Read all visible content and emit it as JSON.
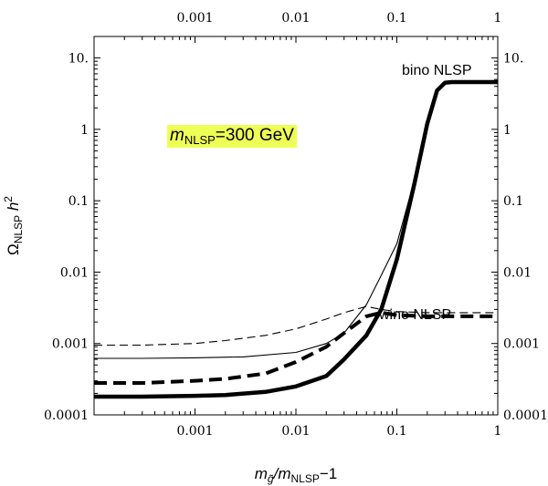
{
  "chart_data": {
    "type": "line",
    "xscale": "log",
    "yscale": "log",
    "xlim": [
      0.0001,
      1
    ],
    "ylim": [
      0.0001,
      20
    ],
    "grid": false,
    "xticks": [
      {
        "value": 0.001,
        "label": "0.001"
      },
      {
        "value": 0.01,
        "label": "0.01"
      },
      {
        "value": 0.1,
        "label": "0.1"
      },
      {
        "value": 1,
        "label": "1"
      }
    ],
    "yticks": [
      {
        "value": 0.0001,
        "label": "0.0001"
      },
      {
        "value": 0.001,
        "label": "0.001"
      },
      {
        "value": 0.01,
        "label": "0.01"
      },
      {
        "value": 0.1,
        "label": "0.1"
      },
      {
        "value": 1,
        "label": "1"
      },
      {
        "value": 10,
        "label": "10."
      }
    ],
    "xlabel": {
      "main": "m",
      "sub": "g̃",
      "rest": "/m",
      "sub2": "NLSP",
      "tail": "−1"
    },
    "ylabel": {
      "main": "Ω",
      "sub": "NLSP",
      "rest": " h",
      "sup": "2"
    },
    "annotations": {
      "mass_box": {
        "main": "m",
        "sub": "NLSP",
        "rest": "=300 GeV",
        "background": "#eeff55"
      },
      "bino_label": "bino NLSP",
      "wino_label": "wino NLSP"
    },
    "series": [
      {
        "style": "thick-solid",
        "x": [
          0.0001,
          0.0003,
          0.001,
          0.002,
          0.005,
          0.01,
          0.02,
          0.03,
          0.05,
          0.07,
          0.1,
          0.15,
          0.2,
          0.25,
          0.3,
          0.35,
          0.5,
          1
        ],
        "y": [
          0.00018,
          0.00018,
          0.000185,
          0.00019,
          0.00021,
          0.00025,
          0.00035,
          0.0006,
          0.0013,
          0.003,
          0.015,
          0.18,
          1.2,
          3.5,
          4.5,
          4.6,
          4.6,
          4.6
        ]
      },
      {
        "style": "thin-solid",
        "x": [
          0.0001,
          0.0003,
          0.001,
          0.003,
          0.01,
          0.02,
          0.03,
          0.05,
          0.07,
          0.1,
          0.15,
          0.2,
          0.25,
          0.3,
          0.35,
          0.5,
          1
        ],
        "y": [
          0.00062,
          0.00062,
          0.00063,
          0.00065,
          0.00075,
          0.001,
          0.0014,
          0.0035,
          0.009,
          0.025,
          0.2,
          1.2,
          3.5,
          4.5,
          4.6,
          4.6,
          4.6
        ]
      },
      {
        "style": "thick-dashed",
        "x": [
          0.0001,
          0.0003,
          0.001,
          0.002,
          0.005,
          0.01,
          0.02,
          0.03,
          0.05,
          0.07,
          0.1,
          0.2,
          0.5,
          1
        ],
        "y": [
          0.00028,
          0.00028,
          0.0003,
          0.00032,
          0.00038,
          0.00055,
          0.0009,
          0.0014,
          0.0024,
          0.0027,
          0.0025,
          0.0024,
          0.0024,
          0.0024
        ]
      },
      {
        "style": "thin-dashed",
        "x": [
          0.0001,
          0.0003,
          0.001,
          0.002,
          0.005,
          0.01,
          0.02,
          0.03,
          0.05,
          0.07,
          0.1,
          0.2,
          0.5,
          1
        ],
        "y": [
          0.00095,
          0.00095,
          0.001,
          0.0011,
          0.0013,
          0.0016,
          0.0022,
          0.0027,
          0.0033,
          0.003,
          0.0028,
          0.0027,
          0.0027,
          0.0027
        ]
      }
    ]
  }
}
